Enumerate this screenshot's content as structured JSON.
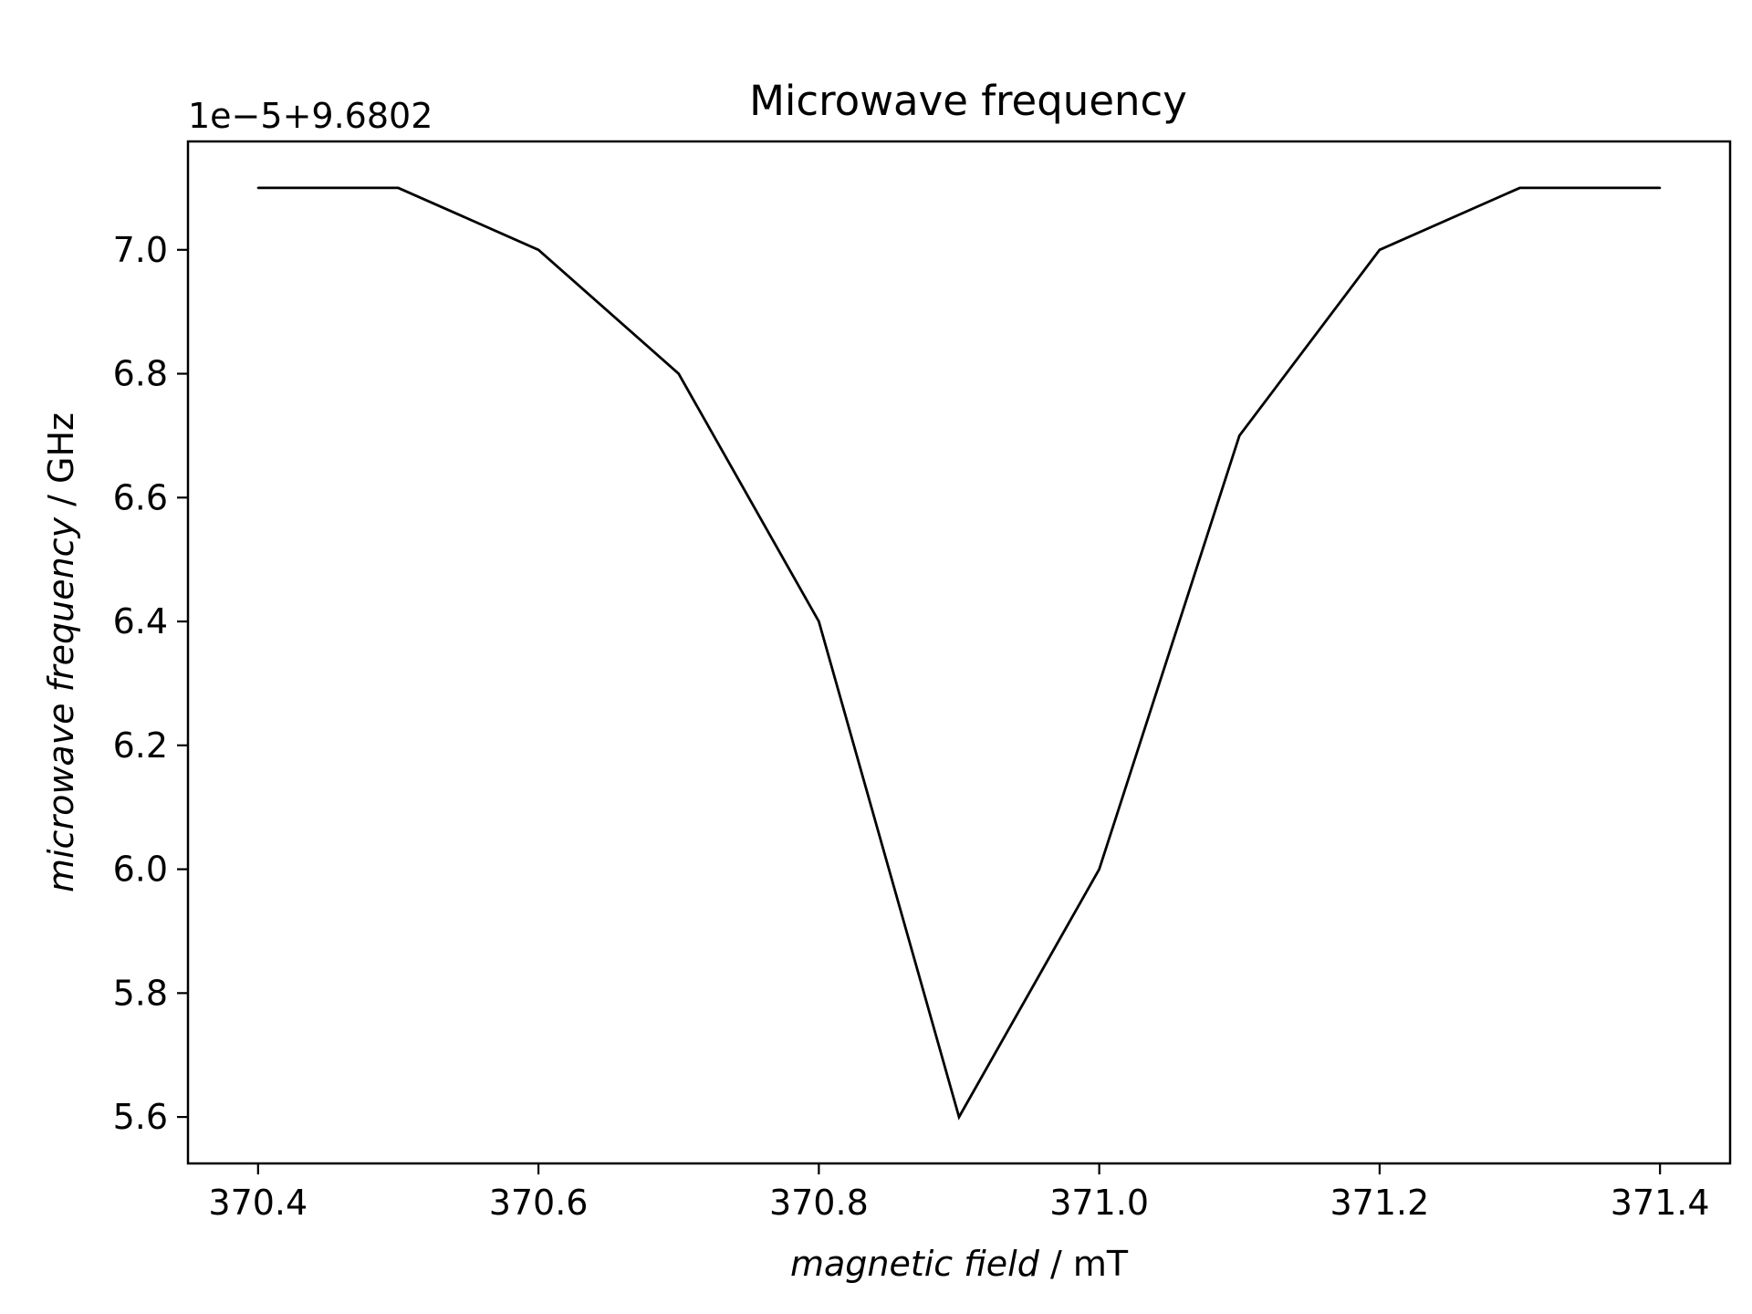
{
  "chart_data": {
    "type": "line",
    "title": "Microwave frequency",
    "offset_label": "1e−5+9.6802",
    "xlabel": {
      "italic": "magnetic field",
      "rest": " / mT"
    },
    "ylabel": {
      "italic": "microwave frequency",
      "rest": " / GHz"
    },
    "xlim": [
      370.35,
      371.45
    ],
    "ylim": [
      5.525,
      7.175
    ],
    "xticks": [
      370.4,
      370.6,
      370.8,
      371.0,
      371.2,
      371.4
    ],
    "xtick_labels": [
      "370.4",
      "370.6",
      "370.8",
      "371.0",
      "371.2",
      "371.4"
    ],
    "yticks": [
      5.6,
      5.8,
      6.0,
      6.2,
      6.4,
      6.6,
      6.8,
      7.0
    ],
    "ytick_labels": [
      "5.6",
      "5.8",
      "6.0",
      "6.2",
      "6.4",
      "6.6",
      "6.8",
      "7.0"
    ],
    "grid": false,
    "line_color": "#000000",
    "series": [
      {
        "x": [
          370.4,
          370.5,
          370.6,
          370.7,
          370.8,
          370.9,
          371.0,
          371.1,
          371.2,
          371.3,
          371.4
        ],
        "y": [
          7.1,
          7.1,
          7.0,
          6.8,
          6.4,
          5.6,
          6.0,
          6.7,
          7.0,
          7.1,
          7.1
        ]
      }
    ]
  }
}
